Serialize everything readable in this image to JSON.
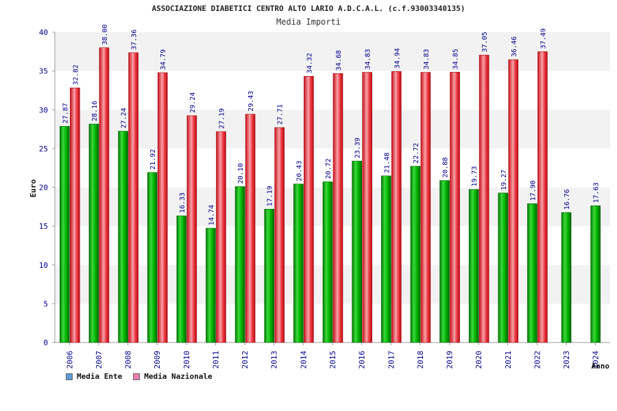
{
  "chart_data": {
    "type": "bar",
    "title": "ASSOCIAZIONE DIABETICI CENTRO ALTO LARIO A.D.C.A.L. (c.f.93003340135)",
    "subtitle": "Media Importi",
    "xlabel": "Anno",
    "ylabel": "Euro",
    "ylim": [
      0,
      40
    ],
    "yticks": [
      0,
      5,
      10,
      15,
      20,
      25,
      30,
      35,
      40
    ],
    "categories": [
      "2006",
      "2007",
      "2008",
      "2009",
      "2010",
      "2011",
      "2012",
      "2013",
      "2014",
      "2015",
      "2016",
      "2017",
      "2018",
      "2019",
      "2020",
      "2021",
      "2022",
      "2023",
      "2024"
    ],
    "series": [
      {
        "name": "Media Ente",
        "color": "#00a000",
        "legend_color": "#5b9bd5",
        "values": [
          27.87,
          28.16,
          27.24,
          21.92,
          16.33,
          14.74,
          20.1,
          17.19,
          20.43,
          20.72,
          23.39,
          21.48,
          22.72,
          20.88,
          19.73,
          19.27,
          17.9,
          16.76,
          17.63
        ],
        "labels": [
          "27.87",
          "28.16",
          "27.24",
          "21.92",
          "16.33",
          "14.74",
          "20.10",
          "17.19",
          "20.43",
          "20.72",
          "23.39",
          "21.48",
          "22.72",
          "20.88",
          "19.73",
          "19.27",
          "17.90",
          "16.76",
          "17.63"
        ]
      },
      {
        "name": "Media Nazionale",
        "color": "#e8202a",
        "legend_color": "#e87fb0",
        "values": [
          32.82,
          38.0,
          37.36,
          34.79,
          29.24,
          27.19,
          29.43,
          27.71,
          34.32,
          34.68,
          34.83,
          34.94,
          34.83,
          34.85,
          37.05,
          36.46,
          37.49,
          null,
          null
        ],
        "labels": [
          "32.82",
          "38.00",
          "37.36",
          "34.79",
          "29.24",
          "27.19",
          "29.43",
          "27.71",
          "34.32",
          "34.68",
          "34.83",
          "34.94",
          "34.83",
          "34.85",
          "37.05",
          "36.46",
          "37.49",
          null,
          null
        ]
      }
    ],
    "grid": true,
    "legend_position": "bottom-left"
  }
}
